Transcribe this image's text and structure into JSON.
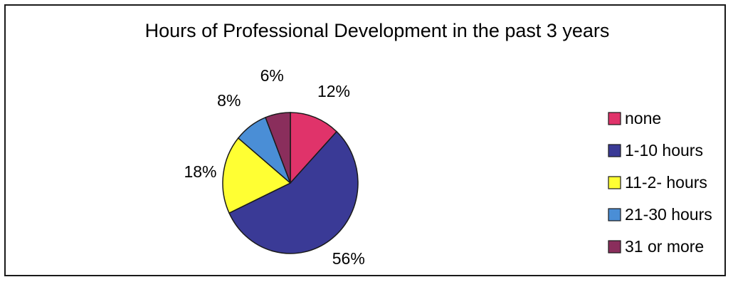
{
  "chart_data": {
    "type": "pie",
    "title": "Hours of Professional Development in the past 3 years",
    "categories": [
      "none",
      "1-10 hours",
      "11-2- hours",
      "21-30 hours",
      "31 or more"
    ],
    "values": [
      12,
      56,
      18,
      8,
      6
    ],
    "data_labels": [
      "12%",
      "56%",
      "18%",
      "8%",
      "6%"
    ],
    "colors": [
      "#e0336a",
      "#3a3a96",
      "#ffff33",
      "#4a8ed6",
      "#8a2e5c"
    ],
    "legend_placement": "right",
    "start_angle": "top",
    "direction": "clockwise"
  }
}
